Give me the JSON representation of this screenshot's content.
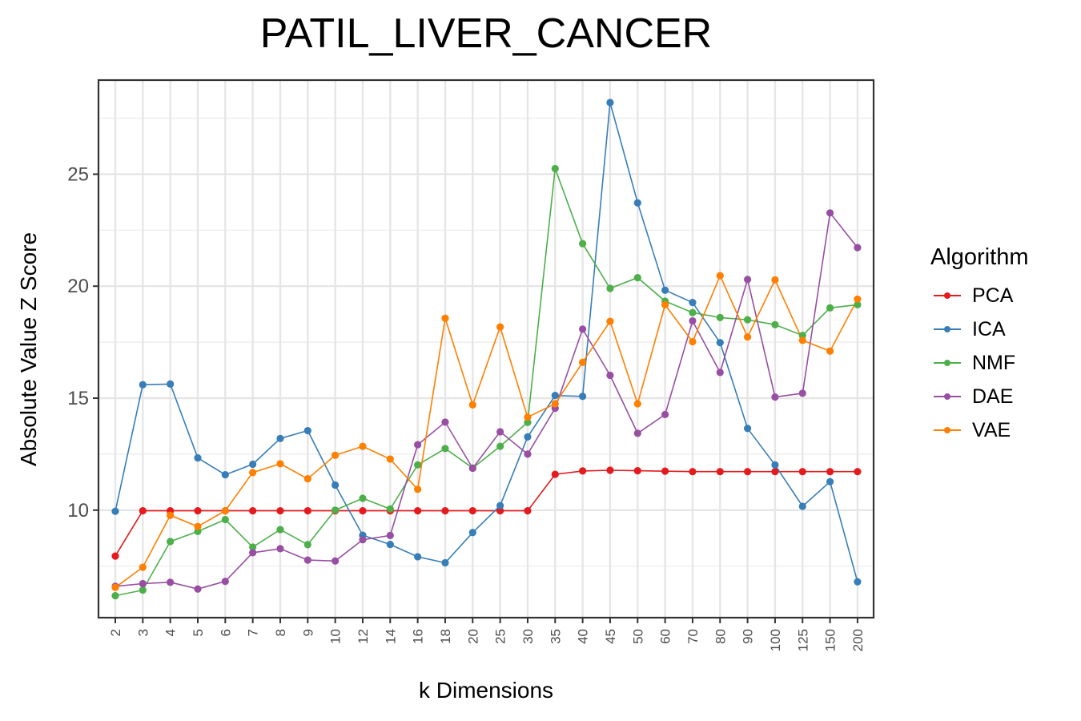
{
  "chart_data": {
    "type": "line",
    "title": "PATIL_LIVER_CANCER",
    "xlabel": "k Dimensions",
    "ylabel": "Absolute Value Z Score",
    "categories": [
      "2",
      "3",
      "4",
      "5",
      "6",
      "7",
      "8",
      "9",
      "10",
      "12",
      "14",
      "16",
      "18",
      "20",
      "25",
      "30",
      "35",
      "40",
      "45",
      "50",
      "60",
      "70",
      "80",
      "90",
      "100",
      "125",
      "150",
      "200"
    ],
    "yticks": [
      "10",
      "15",
      "20",
      "25"
    ],
    "ylim": [
      5.2,
      29.2
    ],
    "grid": true,
    "legend": {
      "title": "Algorithm",
      "position": "right"
    },
    "series": [
      {
        "name": "PCA",
        "color": "#e41a1c",
        "values": [
          7.95,
          9.97,
          9.97,
          9.97,
          9.97,
          9.97,
          9.97,
          9.97,
          9.97,
          9.97,
          9.97,
          9.97,
          9.97,
          9.97,
          9.97,
          9.97,
          11.6,
          11.75,
          11.78,
          11.76,
          11.74,
          11.72,
          11.72,
          11.72,
          11.72,
          11.72,
          11.72,
          11.72
        ]
      },
      {
        "name": "ICA",
        "color": "#377eb8",
        "values": [
          9.95,
          15.6,
          15.63,
          12.33,
          11.58,
          12.05,
          13.2,
          13.55,
          11.12,
          8.88,
          8.47,
          7.92,
          7.65,
          9.0,
          10.2,
          13.27,
          15.12,
          15.08,
          28.2,
          23.72,
          19.82,
          19.27,
          17.48,
          13.65,
          12.02,
          10.17,
          11.27,
          6.8
        ]
      },
      {
        "name": "NMF",
        "color": "#4daf4a",
        "values": [
          6.18,
          6.43,
          8.6,
          9.05,
          9.58,
          8.35,
          9.13,
          8.46,
          10.0,
          10.53,
          10.05,
          12.02,
          12.75,
          11.88,
          12.85,
          13.92,
          25.25,
          21.9,
          19.9,
          20.38,
          19.33,
          18.82,
          18.6,
          18.5,
          18.28,
          17.8,
          19.03,
          19.17
        ]
      },
      {
        "name": "DAE",
        "color": "#984ea3",
        "values": [
          6.6,
          6.72,
          6.78,
          6.48,
          6.82,
          8.1,
          8.28,
          7.77,
          7.73,
          8.68,
          8.87,
          12.92,
          13.93,
          11.87,
          13.5,
          12.5,
          14.55,
          18.08,
          16.02,
          13.43,
          14.27,
          18.45,
          16.15,
          20.3,
          15.05,
          15.22,
          23.27,
          21.72
        ]
      },
      {
        "name": "VAE",
        "color": "#ff7f00",
        "values": [
          6.55,
          7.45,
          9.77,
          9.27,
          9.97,
          11.68,
          12.07,
          11.4,
          12.45,
          12.85,
          12.28,
          10.93,
          18.57,
          14.7,
          18.18,
          14.15,
          14.75,
          16.6,
          18.43,
          14.75,
          19.17,
          17.52,
          20.47,
          17.73,
          20.28,
          17.58,
          17.1,
          19.42
        ]
      }
    ]
  }
}
